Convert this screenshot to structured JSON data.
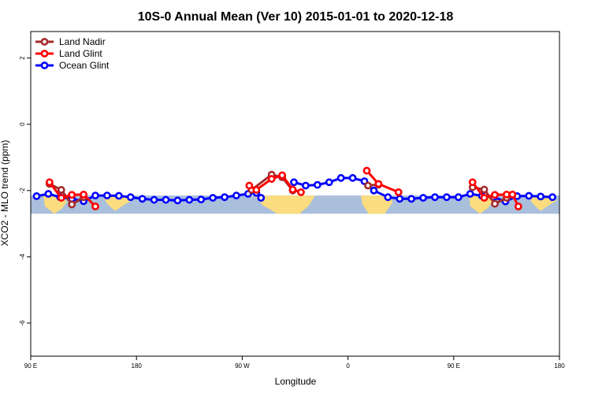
{
  "chart_data": {
    "type": "line",
    "title": "10S-0 Annual Mean (Ver 10)   2015-01-01 to 2020-12-18",
    "xlabel": "Longitude",
    "ylabel": "XCO2 - MLO trend (ppm)",
    "xlim": [
      90,
      540
    ],
    "ylim": [
      -7,
      2.8
    ],
    "x_ticks": [
      {
        "value": 90,
        "label": "90 E"
      },
      {
        "value": 180,
        "label": "180"
      },
      {
        "value": 270,
        "label": "90 W"
      },
      {
        "value": 360,
        "label": "0"
      },
      {
        "value": 450,
        "label": "90 E"
      },
      {
        "value": 540,
        "label": "180"
      }
    ],
    "y_ticks": [
      {
        "value": 2,
        "label": "2"
      },
      {
        "value": 0,
        "label": "0"
      },
      {
        "value": -2,
        "label": "-2"
      },
      {
        "value": -4,
        "label": "-4"
      },
      {
        "value": -6,
        "label": "-6"
      }
    ],
    "legend_position": "top-left",
    "map_band": {
      "y_top": -2.15,
      "y_bottom": -2.7,
      "ocean_color": "#a9bfdc",
      "land_color": "#fbdc7e"
    },
    "series": [
      {
        "name": "Land Nadir",
        "color": "#a52a2a",
        "segments": [
          [
            {
              "x": 106,
              "y": -1.8
            },
            {
              "x": 116,
              "y": -1.98
            },
            {
              "x": 125,
              "y": -2.42
            },
            {
              "x": 135,
              "y": -2.2
            }
          ],
          [
            {
              "x": 278,
              "y": -1.98
            },
            {
              "x": 295,
              "y": -1.52
            },
            {
              "x": 304,
              "y": -1.6
            },
            {
              "x": 313,
              "y": -2.0
            }
          ],
          [
            {
              "x": 377,
              "y": -1.85
            },
            {
              "x": 386,
              "y": -1.82
            }
          ],
          [
            {
              "x": 466,
              "y": -1.9
            },
            {
              "x": 476,
              "y": -1.97
            },
            {
              "x": 485,
              "y": -2.4
            },
            {
              "x": 495,
              "y": -2.22
            }
          ]
        ]
      },
      {
        "name": "Land Glint",
        "color": "#ff0000",
        "segments": [
          [
            {
              "x": 106,
              "y": -1.75
            },
            {
              "x": 116,
              "y": -2.22
            },
            {
              "x": 125,
              "y": -2.13
            },
            {
              "x": 135,
              "y": -2.12
            },
            {
              "x": 145,
              "y": -2.48
            }
          ],
          [
            {
              "x": 276,
              "y": -1.85
            },
            {
              "x": 282,
              "y": -1.98
            },
            {
              "x": 295,
              "y": -1.65
            },
            {
              "x": 304,
              "y": -1.54
            },
            {
              "x": 313,
              "y": -1.97
            },
            {
              "x": 320,
              "y": -2.05
            }
          ],
          [
            {
              "x": 376,
              "y": -1.4
            },
            {
              "x": 386,
              "y": -1.8
            },
            {
              "x": 403,
              "y": -2.05
            }
          ],
          [
            {
              "x": 466,
              "y": -1.75
            },
            {
              "x": 476,
              "y": -2.22
            },
            {
              "x": 485,
              "y": -2.13
            },
            {
              "x": 495,
              "y": -2.12
            },
            {
              "x": 500,
              "y": -2.12
            },
            {
              "x": 505,
              "y": -2.48
            }
          ]
        ]
      },
      {
        "name": "Ocean Glint",
        "color": "#0000ff",
        "segments": [
          [
            {
              "x": 95,
              "y": -2.17
            },
            {
              "x": 105,
              "y": -2.1
            },
            {
              "x": 115,
              "y": -2.2
            },
            {
              "x": 125,
              "y": -2.25
            },
            {
              "x": 135,
              "y": -2.32
            },
            {
              "x": 145,
              "y": -2.15
            },
            {
              "x": 155,
              "y": -2.15
            },
            {
              "x": 165,
              "y": -2.16
            },
            {
              "x": 175,
              "y": -2.2
            },
            {
              "x": 185,
              "y": -2.25
            },
            {
              "x": 195,
              "y": -2.28
            },
            {
              "x": 205,
              "y": -2.28
            },
            {
              "x": 215,
              "y": -2.3
            },
            {
              "x": 225,
              "y": -2.28
            },
            {
              "x": 235,
              "y": -2.27
            },
            {
              "x": 245,
              "y": -2.22
            },
            {
              "x": 255,
              "y": -2.2
            },
            {
              "x": 265,
              "y": -2.15
            },
            {
              "x": 275,
              "y": -2.1
            },
            {
              "x": 282,
              "y": -2.07
            },
            {
              "x": 286,
              "y": -2.22
            }
          ],
          [
            {
              "x": 314,
              "y": -1.75
            },
            {
              "x": 324,
              "y": -1.85
            },
            {
              "x": 334,
              "y": -1.83
            },
            {
              "x": 344,
              "y": -1.75
            },
            {
              "x": 354,
              "y": -1.62
            },
            {
              "x": 364,
              "y": -1.62
            },
            {
              "x": 374,
              "y": -1.72
            },
            {
              "x": 382,
              "y": -2.0
            },
            {
              "x": 394,
              "y": -2.2
            },
            {
              "x": 404,
              "y": -2.25
            },
            {
              "x": 414,
              "y": -2.25
            },
            {
              "x": 424,
              "y": -2.22
            },
            {
              "x": 434,
              "y": -2.2
            },
            {
              "x": 444,
              "y": -2.2
            },
            {
              "x": 454,
              "y": -2.2
            },
            {
              "x": 464,
              "y": -2.1
            },
            {
              "x": 474,
              "y": -2.16
            },
            {
              "x": 484,
              "y": -2.2
            },
            {
              "x": 494,
              "y": -2.33
            },
            {
              "x": 504,
              "y": -2.17
            },
            {
              "x": 514,
              "y": -2.16
            },
            {
              "x": 524,
              "y": -2.18
            },
            {
              "x": 534,
              "y": -2.2
            }
          ]
        ]
      }
    ]
  }
}
